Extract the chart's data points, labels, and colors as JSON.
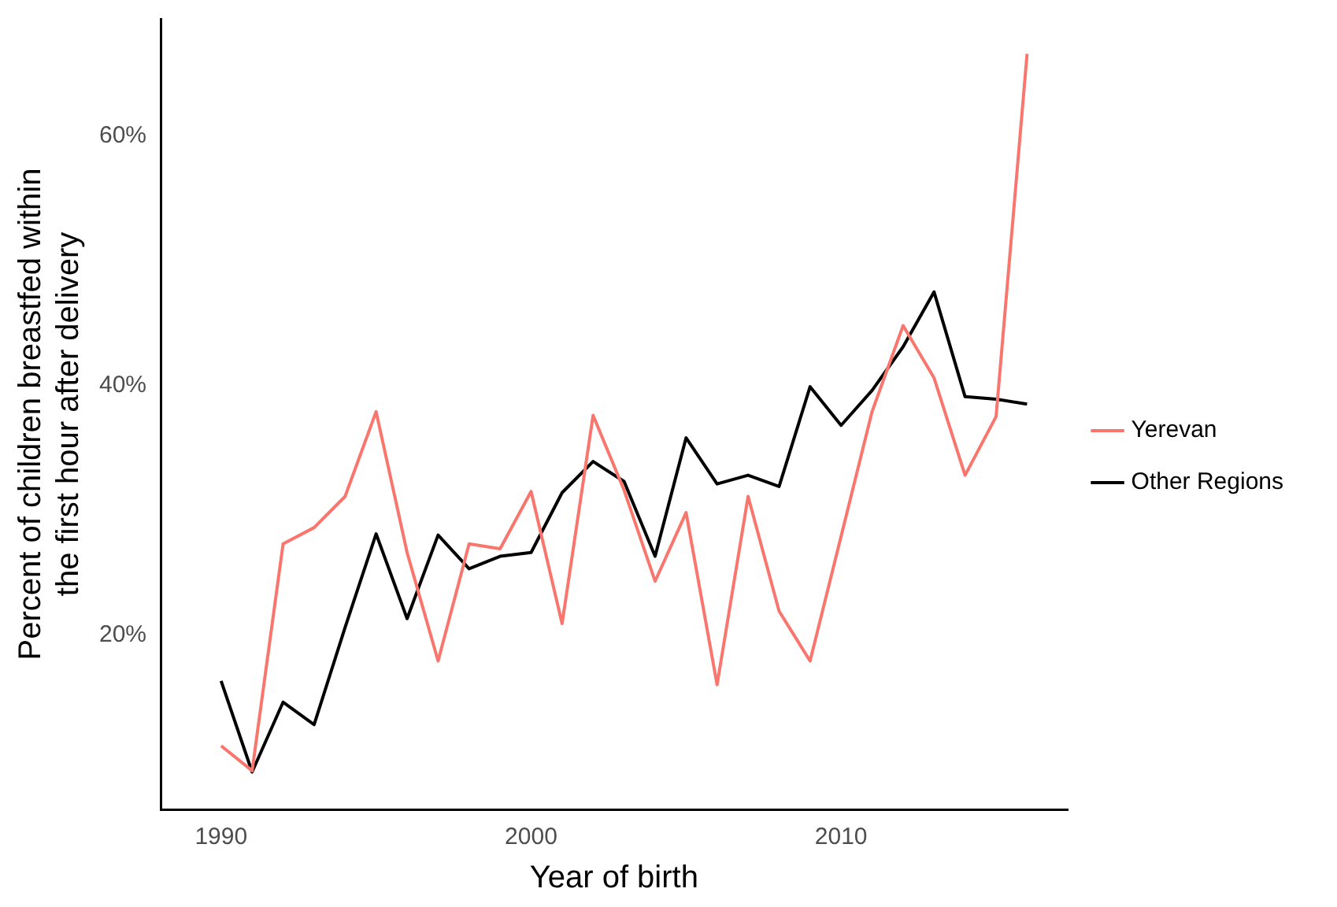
{
  "chart_data": {
    "type": "line",
    "xlabel": "Year of birth",
    "ylabel": "Percent of children breastfed within\nthe first hour after delivery",
    "x": [
      1990,
      1991,
      1992,
      1993,
      1994,
      1995,
      1996,
      1997,
      1998,
      1999,
      2000,
      2001,
      2002,
      2003,
      2004,
      2005,
      2006,
      2007,
      2008,
      2009,
      2010,
      2011,
      2012,
      2013,
      2014,
      2015,
      2016
    ],
    "series": [
      {
        "name": "Yerevan",
        "color": "#f8766d",
        "values": [
          11.1,
          9.1,
          27.3,
          28.6,
          31.1,
          37.9,
          26.6,
          17.9,
          27.3,
          26.9,
          31.5,
          20.9,
          37.6,
          31.6,
          24.3,
          29.8,
          16,
          31.1,
          21.9,
          17.9,
          27.9,
          37.9,
          44.8,
          40.6,
          32.8,
          37.5,
          66.6
        ]
      },
      {
        "name": "Other Regions",
        "color": "#000000",
        "values": [
          16.3,
          9,
          14.6,
          12.8,
          20.6,
          28.1,
          21.3,
          28,
          25.3,
          26.3,
          26.6,
          31.4,
          33.9,
          32.3,
          26.3,
          35.8,
          32.1,
          32.8,
          31.9,
          39.9,
          36.8,
          39.6,
          43.1,
          47.5,
          39.1,
          38.9,
          38.5
        ]
      }
    ],
    "xlim": [
      1988.05,
      2017.3
    ],
    "xticks": [
      1990,
      2000,
      2010
    ],
    "ylim": [
      6,
      69.4
    ],
    "yticks": [
      {
        "value": 20,
        "label": "20%"
      },
      {
        "value": 40,
        "label": "40%"
      },
      {
        "value": 60,
        "label": "60%"
      }
    ],
    "grid": false,
    "legend": "right",
    "marker": "none",
    "line_style": "solid"
  }
}
